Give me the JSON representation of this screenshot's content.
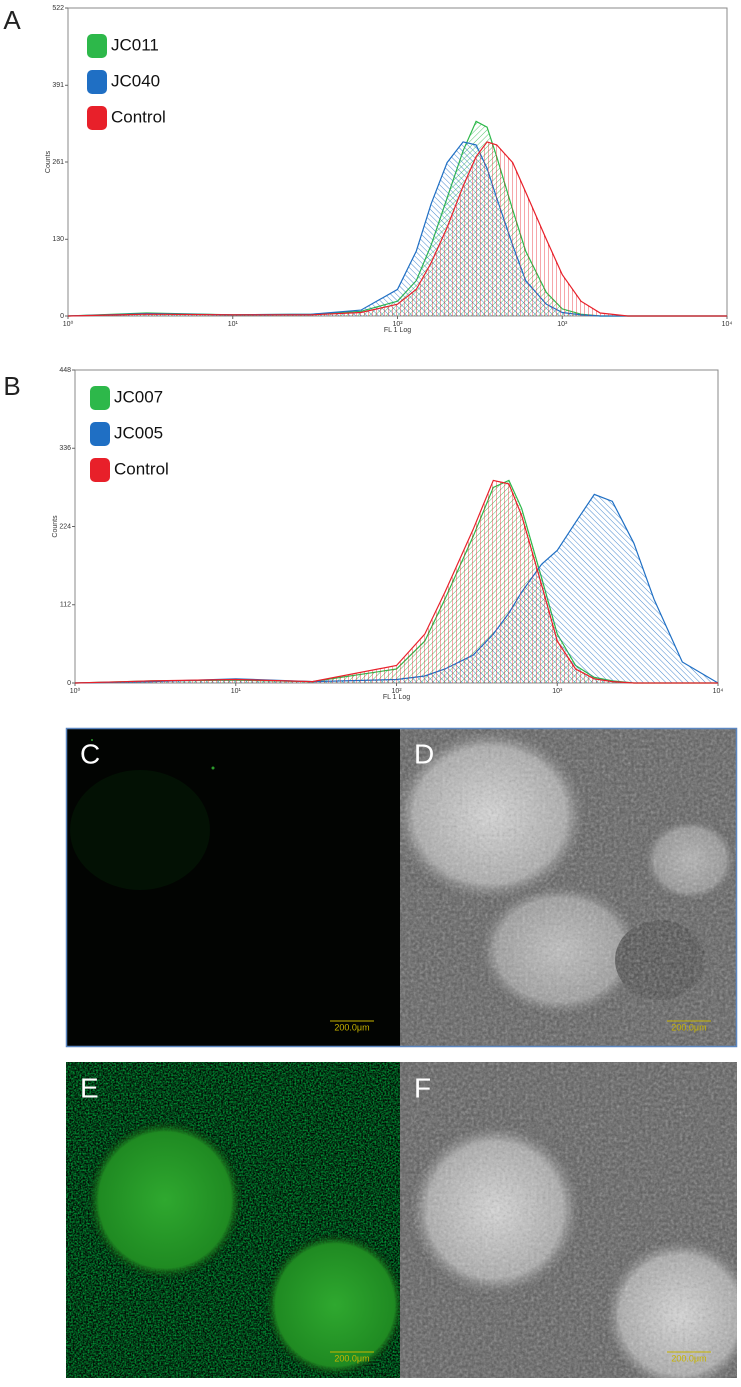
{
  "chart_data": [
    {
      "type": "line",
      "label": "A",
      "x_label": "FL 1 Log",
      "y_label": "Counts",
      "xscale": "log",
      "xlim": [
        1,
        10000
      ],
      "ylim": [
        0,
        522
      ],
      "xticks": [
        {
          "value": 1,
          "label": "10⁰"
        },
        {
          "value": 10,
          "label": "10¹"
        },
        {
          "value": 100,
          "label": "10²"
        },
        {
          "value": 1000,
          "label": "10³"
        },
        {
          "value": 10000,
          "label": "10⁴"
        }
      ],
      "yticks": [
        0,
        130,
        261,
        391,
        522
      ],
      "x": [
        1,
        3,
        10,
        30,
        60,
        100,
        130,
        160,
        200,
        250,
        300,
        350,
        400,
        500,
        600,
        800,
        1000,
        1300,
        1700,
        2500,
        10000
      ],
      "series": [
        {
          "name": "JC011",
          "color": "#2db84a",
          "values": [
            0,
            5,
            2,
            3,
            8,
            25,
            60,
            120,
            200,
            280,
            330,
            320,
            270,
            180,
            110,
            40,
            12,
            3,
            0,
            0,
            0
          ]
        },
        {
          "name": "JC040",
          "color": "#1f6fc4",
          "values": [
            0,
            4,
            2,
            3,
            10,
            45,
            110,
            190,
            260,
            295,
            290,
            250,
            200,
            120,
            60,
            20,
            6,
            2,
            0,
            0,
            0
          ]
        },
        {
          "name": "Control",
          "color": "#e8202a",
          "values": [
            0,
            3,
            2,
            2,
            6,
            20,
            45,
            90,
            150,
            220,
            270,
            295,
            290,
            260,
            210,
            130,
            70,
            25,
            5,
            0,
            0
          ]
        }
      ]
    },
    {
      "type": "line",
      "label": "B",
      "x_label": "FL 1 Log",
      "y_label": "Counts",
      "xscale": "log",
      "xlim": [
        1,
        10000
      ],
      "ylim": [
        0,
        448
      ],
      "xticks": [
        {
          "value": 1,
          "label": "10⁰"
        },
        {
          "value": 10,
          "label": "10¹"
        },
        {
          "value": 100,
          "label": "10²"
        },
        {
          "value": 1000,
          "label": "10³"
        },
        {
          "value": 10000,
          "label": "10⁴"
        }
      ],
      "yticks": [
        0,
        112,
        224,
        336,
        448
      ],
      "x": [
        1,
        3,
        10,
        30,
        100,
        150,
        200,
        300,
        400,
        500,
        600,
        800,
        1000,
        1300,
        1700,
        2200,
        3000,
        4000,
        6000,
        10000
      ],
      "series": [
        {
          "name": "JC007",
          "color": "#2db84a",
          "values": [
            0,
            3,
            4,
            2,
            20,
            60,
            120,
            210,
            280,
            290,
            250,
            150,
            70,
            25,
            8,
            3,
            0,
            0,
            0,
            0
          ]
        },
        {
          "name": "JC005",
          "color": "#1f6fc4",
          "values": [
            0,
            2,
            6,
            2,
            5,
            10,
            20,
            40,
            70,
            100,
            130,
            170,
            190,
            230,
            270,
            260,
            200,
            120,
            30,
            0
          ]
        },
        {
          "name": "Control",
          "color": "#e8202a",
          "values": [
            0,
            3,
            5,
            2,
            25,
            70,
            130,
            220,
            290,
            285,
            240,
            140,
            60,
            20,
            6,
            2,
            0,
            0,
            0,
            0
          ]
        }
      ]
    }
  ],
  "panels": [
    {
      "label": "C",
      "scale_bar": "200.0μm"
    },
    {
      "label": "D",
      "scale_bar": "200.0μm"
    },
    {
      "label": "E",
      "scale_bar": "200.0μm"
    },
    {
      "label": "F",
      "scale_bar": "200.0μm"
    }
  ]
}
